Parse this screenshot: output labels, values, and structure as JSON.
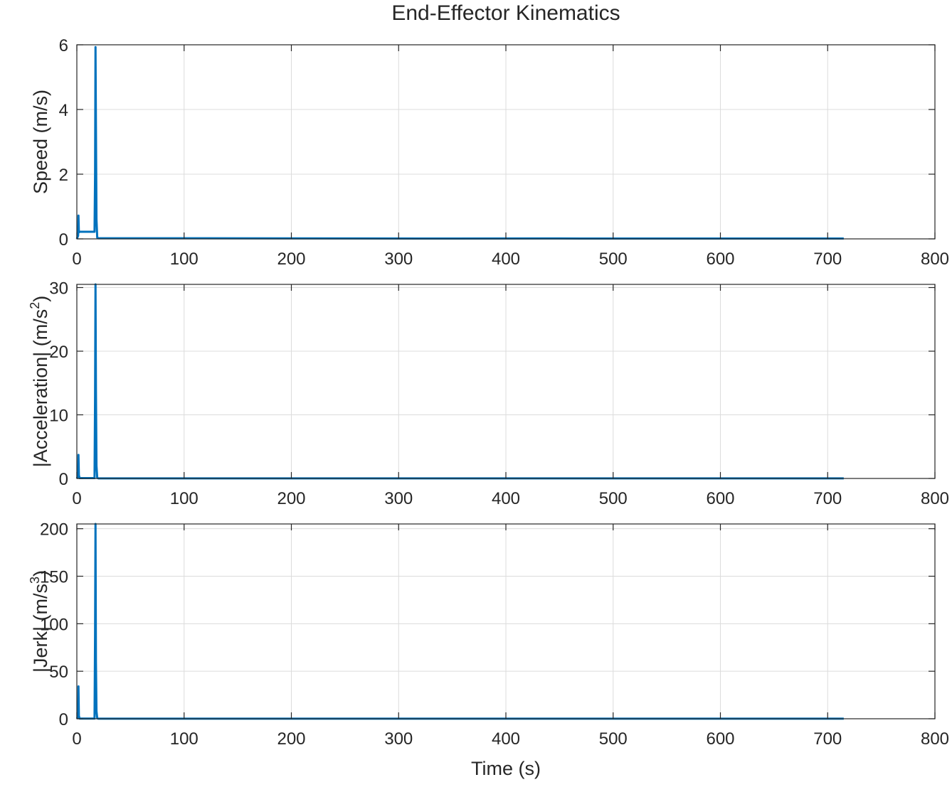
{
  "figure": {
    "title": "End-Effector Kinematics",
    "line_color": "#0072BD",
    "grid_color": "#dcdcdc",
    "axes_color": "#262626"
  },
  "chart_data": [
    {
      "type": "line",
      "ylabel": "Speed (m/s)",
      "ylabel_exponent": "",
      "ylabel_close": "",
      "xlabel": "",
      "xlim": [
        0,
        800
      ],
      "ylim": [
        0,
        6
      ],
      "xticks": [
        0,
        100,
        200,
        300,
        400,
        500,
        600,
        700,
        800
      ],
      "yticks": [
        0,
        2,
        4,
        6
      ],
      "grid": true,
      "series": [
        {
          "x": [
            0,
            1.2,
            1.5,
            1.9,
            2.6,
            16.5,
            17.0,
            17.4,
            17.8,
            18.3,
            19.0,
            20.0,
            120,
            320,
            450,
            470,
            700,
            715
          ],
          "y": [
            0,
            0.1,
            0.72,
            0.2,
            0.22,
            0.22,
            2.0,
            5.93,
            3.5,
            0.6,
            0.04,
            0.02,
            0.02,
            0.01,
            0.015,
            0.01,
            0.01,
            0.01
          ]
        }
      ]
    },
    {
      "type": "line",
      "ylabel": "|Acceleration| (m/s",
      "ylabel_exponent": "2",
      "ylabel_close": ")",
      "xlabel": "",
      "xlim": [
        0,
        800
      ],
      "ylim": [
        0,
        30.5
      ],
      "xticks": [
        0,
        100,
        200,
        300,
        400,
        500,
        600,
        700,
        800
      ],
      "yticks": [
        0,
        10,
        20,
        30
      ],
      "grid": true,
      "series": [
        {
          "x": [
            0,
            1.2,
            1.5,
            1.9,
            2.6,
            16.5,
            17.0,
            17.4,
            17.8,
            18.3,
            19.0,
            20.0,
            715
          ],
          "y": [
            0,
            0.4,
            3.7,
            0.5,
            0.05,
            0.05,
            13.0,
            30.5,
            14.0,
            2.0,
            0.1,
            0.02,
            0.02
          ]
        }
      ]
    },
    {
      "type": "line",
      "ylabel": "|Jerk| (m/s",
      "ylabel_exponent": "3",
      "ylabel_close": ")",
      "xlabel": "Time (s)",
      "xlim": [
        0,
        800
      ],
      "ylim": [
        0,
        205
      ],
      "xticks": [
        0,
        100,
        200,
        300,
        400,
        500,
        600,
        700,
        800
      ],
      "yticks": [
        0,
        50,
        100,
        150,
        200
      ],
      "grid": true,
      "series": [
        {
          "x": [
            0,
            1.2,
            1.5,
            1.9,
            2.6,
            16.5,
            17.0,
            17.4,
            17.8,
            18.3,
            19.0,
            20.0,
            715
          ],
          "y": [
            0,
            2.0,
            34.0,
            3.0,
            0.2,
            0.2,
            90.0,
            205.0,
            60.0,
            8.0,
            0.5,
            0.1,
            0.1
          ]
        }
      ]
    }
  ]
}
